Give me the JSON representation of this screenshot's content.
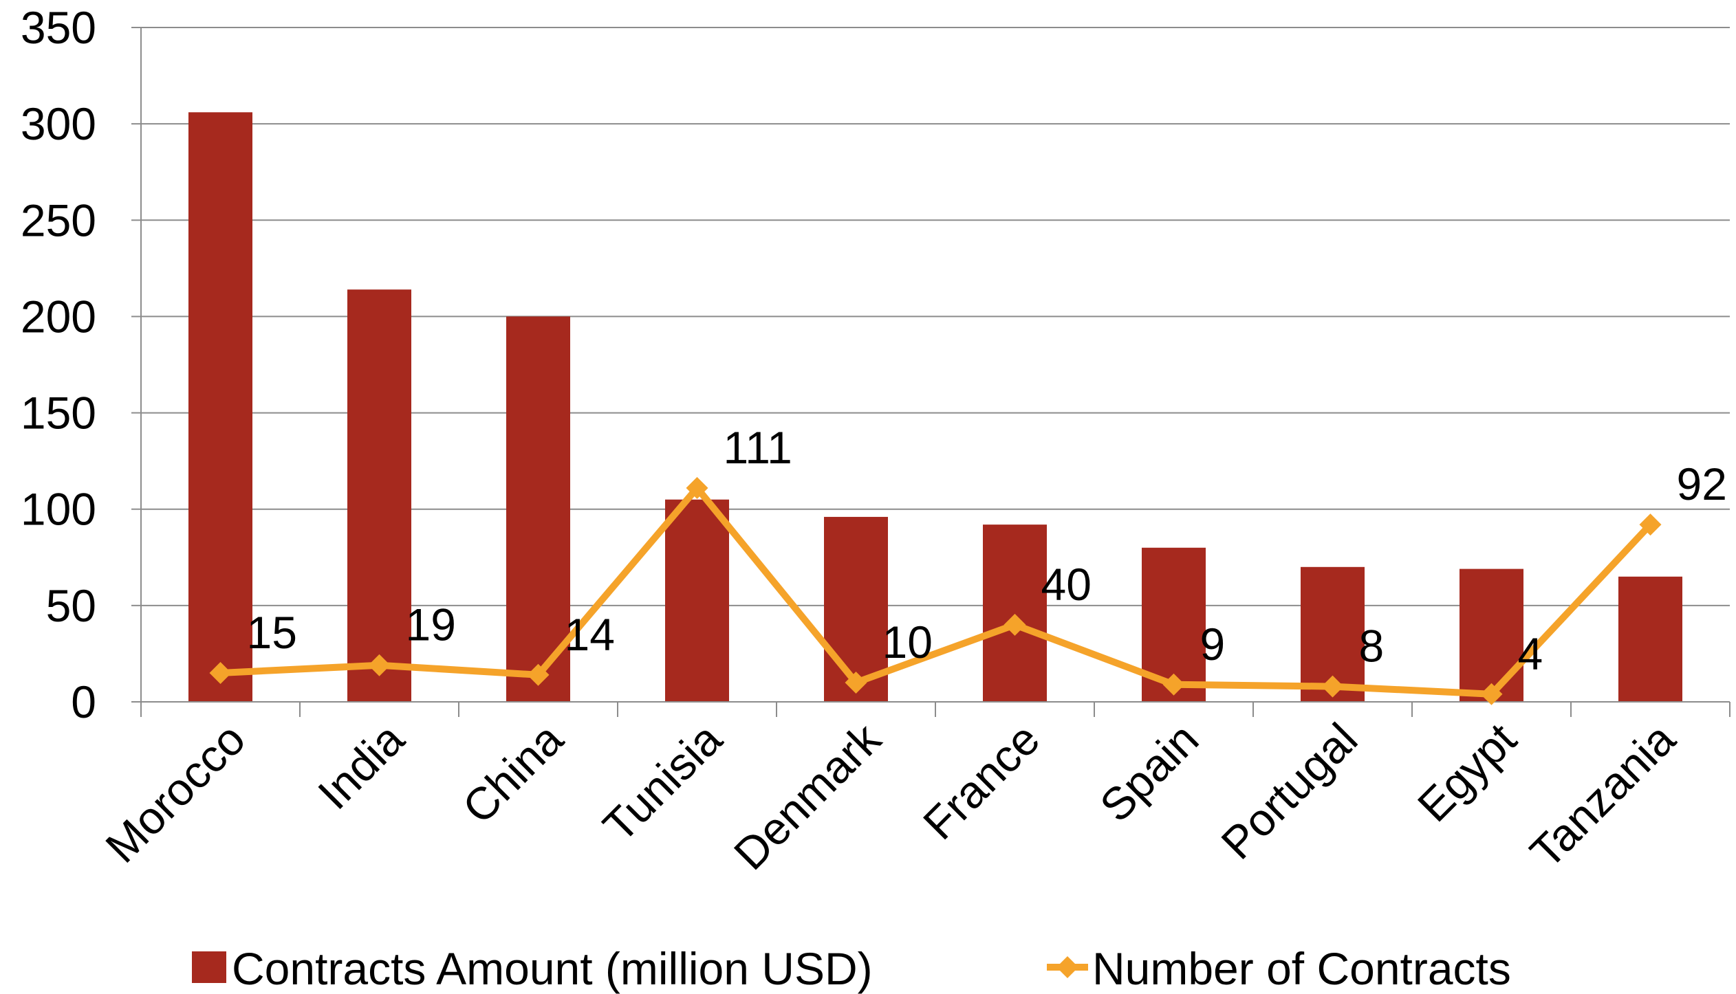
{
  "chart_data": {
    "type": "bar",
    "categories": [
      "Morocco",
      "India",
      "China",
      "Tunisia",
      "Denmark",
      "France",
      "Spain",
      "Portugal",
      "Egypt",
      "Tanzania"
    ],
    "series": [
      {
        "name": "Contracts Amount (million USD)",
        "type": "bar",
        "color": "#A6291E",
        "values": [
          306,
          214,
          200,
          105,
          96,
          92,
          80,
          70,
          69,
          65
        ]
      },
      {
        "name": "Number of Contracts",
        "type": "line",
        "color": "#F5A32A",
        "values": [
          15,
          19,
          14,
          111,
          10,
          40,
          9,
          8,
          4,
          92
        ],
        "data_labels": [
          "15",
          "19",
          "14",
          "111",
          "10",
          "40",
          "9",
          "8",
          "4",
          "92"
        ]
      }
    ],
    "ylim": [
      0,
      350
    ],
    "yticks": [
      "0",
      "50",
      "100",
      "150",
      "200",
      "250",
      "300",
      "350"
    ],
    "grid": true,
    "legend": "bottom"
  }
}
